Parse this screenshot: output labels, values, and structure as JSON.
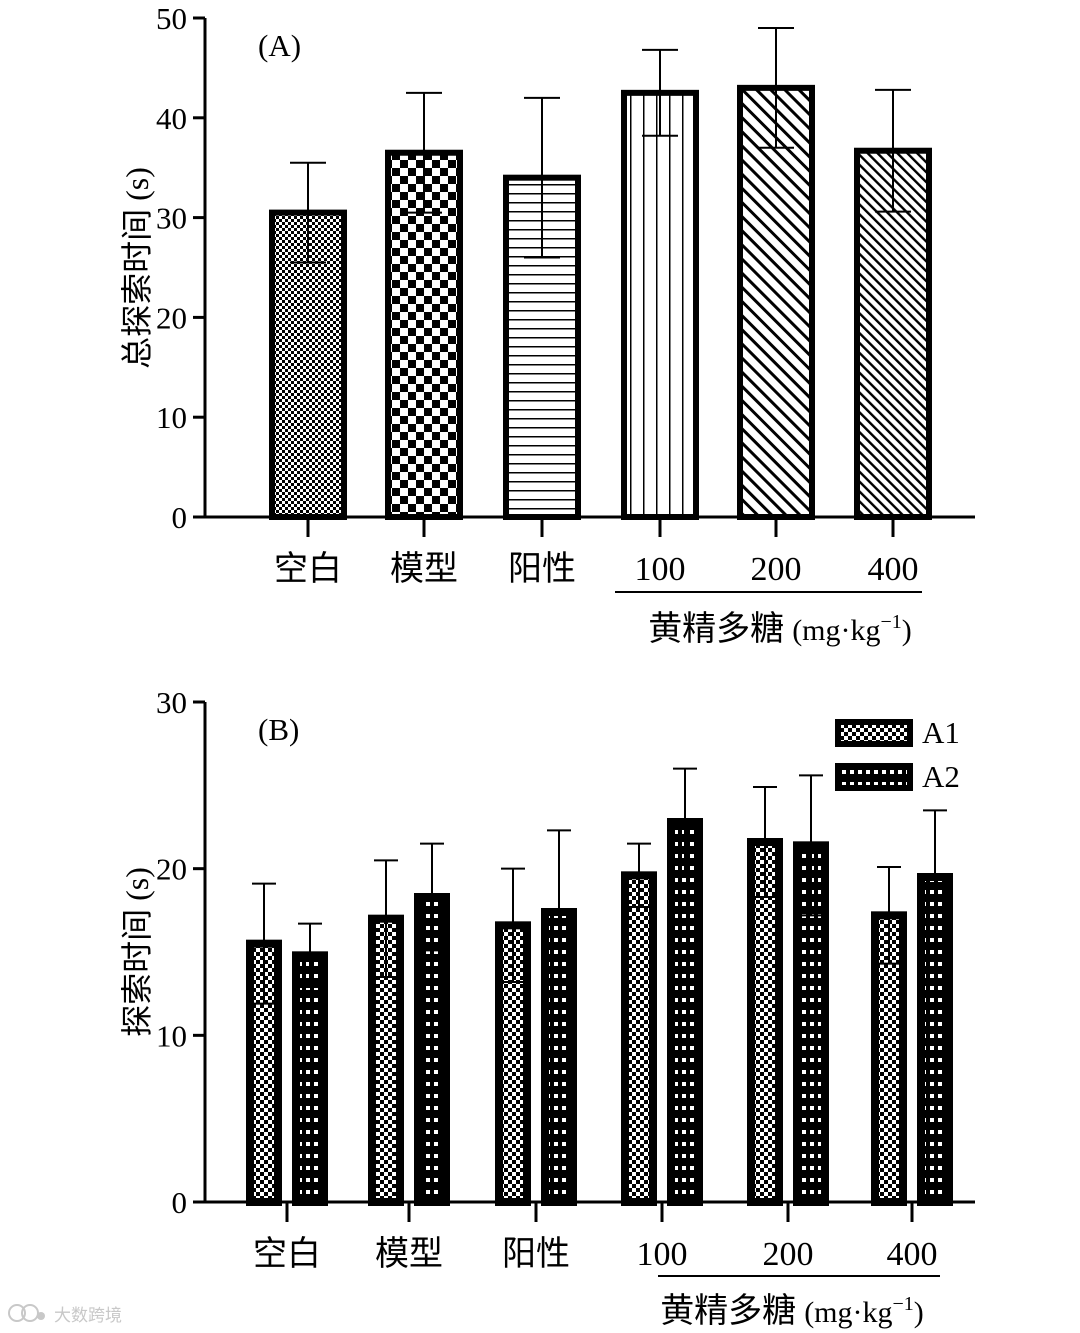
{
  "chart_data": [
    {
      "type": "bar",
      "panel_label": "(A)",
      "ylabel": "总探索时间 (s)",
      "ylim": [
        0,
        50
      ],
      "yticks": [
        "0",
        "10",
        "20",
        "30",
        "40",
        "50"
      ],
      "categories": [
        "空白",
        "模型",
        "阳性",
        "100",
        "200",
        "400"
      ],
      "group_label_main": "黄精多糖",
      "group_label_unit": "(mg·kg",
      "group_label_exp": "−1",
      "group_label_close": ")",
      "values": [
        30.5,
        36.5,
        34,
        42.5,
        43,
        36.7
      ],
      "errors": [
        5,
        6,
        8,
        4.3,
        6,
        6.1
      ],
      "patterns": [
        "fine-check",
        "checker",
        "hlines",
        "vlines",
        "diag",
        "diag-dense"
      ]
    },
    {
      "type": "bar",
      "panel_label": "(B)",
      "ylabel": "探索时间 (s)",
      "ylim": [
        0,
        30
      ],
      "yticks": [
        "0",
        "10",
        "20",
        "30"
      ],
      "categories": [
        "空白",
        "模型",
        "阳性",
        "100",
        "200",
        "400"
      ],
      "group_label_main": "黄精多糖",
      "group_label_unit": "(mg·kg",
      "group_label_exp": "−1",
      "group_label_close": ")",
      "legend_position": "top-right",
      "series": [
        {
          "name": "A1",
          "values": [
            15.5,
            17,
            16.6,
            19.6,
            21.6,
            17.2
          ],
          "errors": [
            3.6,
            3.5,
            3.4,
            1.9,
            3.3,
            2.9
          ]
        },
        {
          "name": "A2",
          "values": [
            14.8,
            18.3,
            17.4,
            22.8,
            21.4,
            19.5
          ],
          "errors": [
            1.9,
            3.2,
            4.9,
            3.2,
            4.2,
            4
          ]
        }
      ]
    }
  ],
  "watermark": {
    "text": "大数跨境"
  }
}
